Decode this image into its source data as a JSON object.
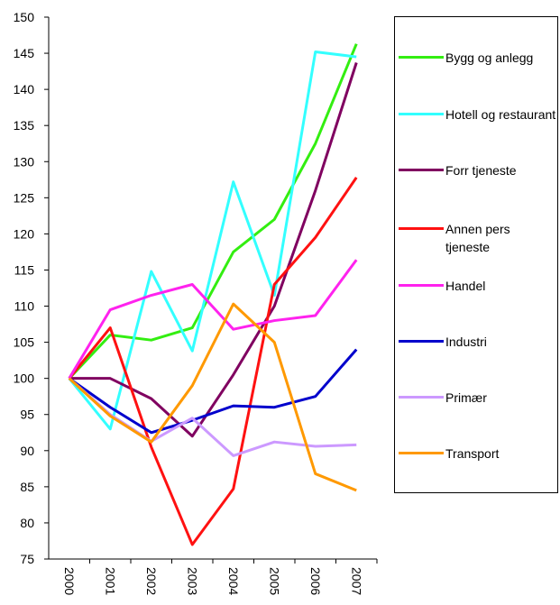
{
  "chart_data": {
    "type": "line",
    "categories": [
      "2000",
      "2001",
      "2002",
      "2003",
      "2004",
      "2005",
      "2006",
      "2007"
    ],
    "series": [
      {
        "name": "Bygg og anlegg",
        "color": "#33ee11",
        "values": [
          100,
          106,
          105.3,
          107,
          117.5,
          122,
          132.5,
          146.3
        ]
      },
      {
        "name": "Hotell og restaurant",
        "color": "#33ffff",
        "values": [
          100,
          93,
          114.8,
          103.8,
          127.2,
          111.5,
          145.2,
          144.5
        ]
      },
      {
        "name": "Forr tjeneste",
        "color": "#800060",
        "values": [
          100,
          100,
          97.2,
          92,
          100.5,
          110,
          126,
          143.7
        ]
      },
      {
        "name": "Annen pers tjeneste",
        "color": "#ff1111",
        "values": [
          100,
          107,
          90.5,
          77,
          84.7,
          113,
          119.5,
          127.8
        ]
      },
      {
        "name": "Handel",
        "color": "#ff22ee",
        "values": [
          100,
          109.5,
          111.5,
          113,
          106.8,
          108,
          108.7,
          116.4
        ]
      },
      {
        "name": "Industri",
        "color": "#0000cc",
        "values": [
          100,
          96,
          92.5,
          94.2,
          96.2,
          96,
          97.5,
          104
        ]
      },
      {
        "name": "Primær",
        "color": "#cc99ff",
        "values": [
          100,
          95,
          91.3,
          94.5,
          89.3,
          91.2,
          90.6,
          90.8
        ]
      },
      {
        "name": "Transport",
        "color": "#ff9900",
        "values": [
          100,
          94.8,
          91.2,
          99,
          110.3,
          105,
          86.8,
          84.5
        ]
      }
    ],
    "ylim": [
      75,
      150
    ],
    "yticks": [
      75,
      80,
      85,
      90,
      95,
      100,
      105,
      110,
      115,
      120,
      125,
      130,
      135,
      140,
      145,
      150
    ],
    "grid": false,
    "legend": "right"
  }
}
